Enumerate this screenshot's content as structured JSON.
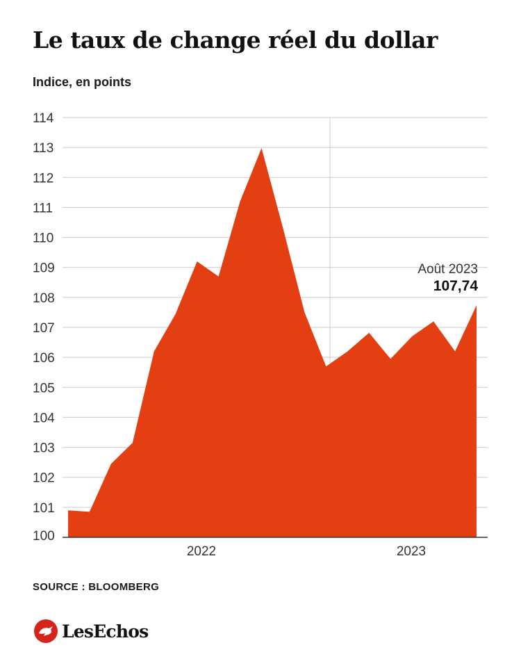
{
  "header": {
    "title": "Le taux de change réel du dollar",
    "subtitle": "Indice, en points"
  },
  "footer": {
    "source": "SOURCE : BLOOMBERG",
    "brand": "LesEchos",
    "logo_icon": "echos-bird-logo-icon"
  },
  "colors": {
    "area": "#e33f13",
    "grid": "#cccccc",
    "axis": "#333333",
    "brand": "#d6241c"
  },
  "chart_data": {
    "type": "area",
    "title": "Le taux de change réel du dollar",
    "ylabel": "Indice, en points",
    "xlabel": "",
    "ylim": [
      100,
      114
    ],
    "yticks": [
      "100",
      "101",
      "102",
      "103",
      "104",
      "105",
      "106",
      "107",
      "108",
      "109",
      "110",
      "111",
      "112",
      "113",
      "114"
    ],
    "x_labels": [
      "2022",
      "2023"
    ],
    "grid": "horizontal",
    "values": [
      100.9,
      100.85,
      102.45,
      103.15,
      106.2,
      107.45,
      109.2,
      108.7,
      111.2,
      112.98,
      110.3,
      107.5,
      105.7,
      106.2,
      106.82,
      105.95,
      106.7,
      107.2,
      106.2,
      107.74
    ],
    "annotation": {
      "label": "Août 2023",
      "value": "107,74"
    }
  }
}
